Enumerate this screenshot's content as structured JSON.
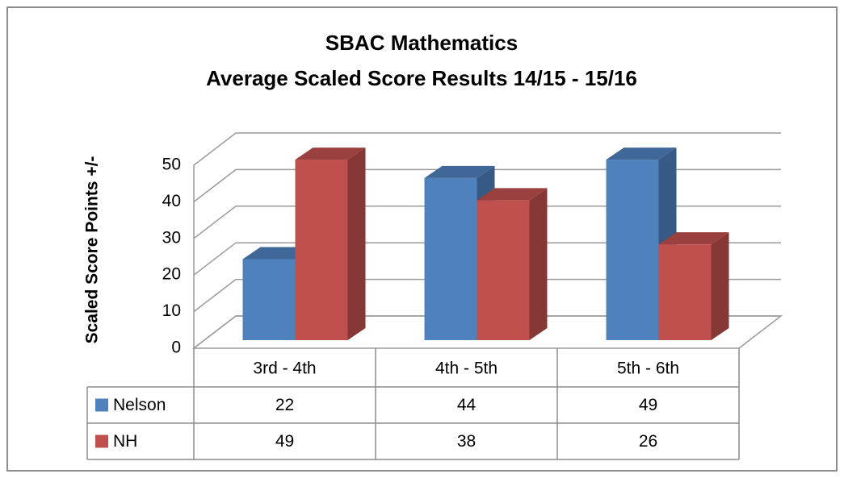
{
  "chart_data": {
    "type": "bar3d",
    "title": [
      "SBAC Mathematics",
      "Average Scaled Score Results 14/15 - 15/16"
    ],
    "y_label": "Scaled Score Points +/-",
    "categories": [
      "3rd - 4th",
      "4th - 5th",
      "5th - 6th"
    ],
    "series": [
      {
        "name": "Nelson",
        "color": "#4f81bd",
        "values": [
          22,
          44,
          49
        ]
      },
      {
        "name": "NH",
        "color": "#c0504d",
        "values": [
          49,
          38,
          26
        ]
      }
    ],
    "ylim": [
      0,
      50
    ],
    "yticks": [
      0,
      10,
      20,
      30,
      40,
      50
    ],
    "grid": true,
    "data_table": true
  }
}
